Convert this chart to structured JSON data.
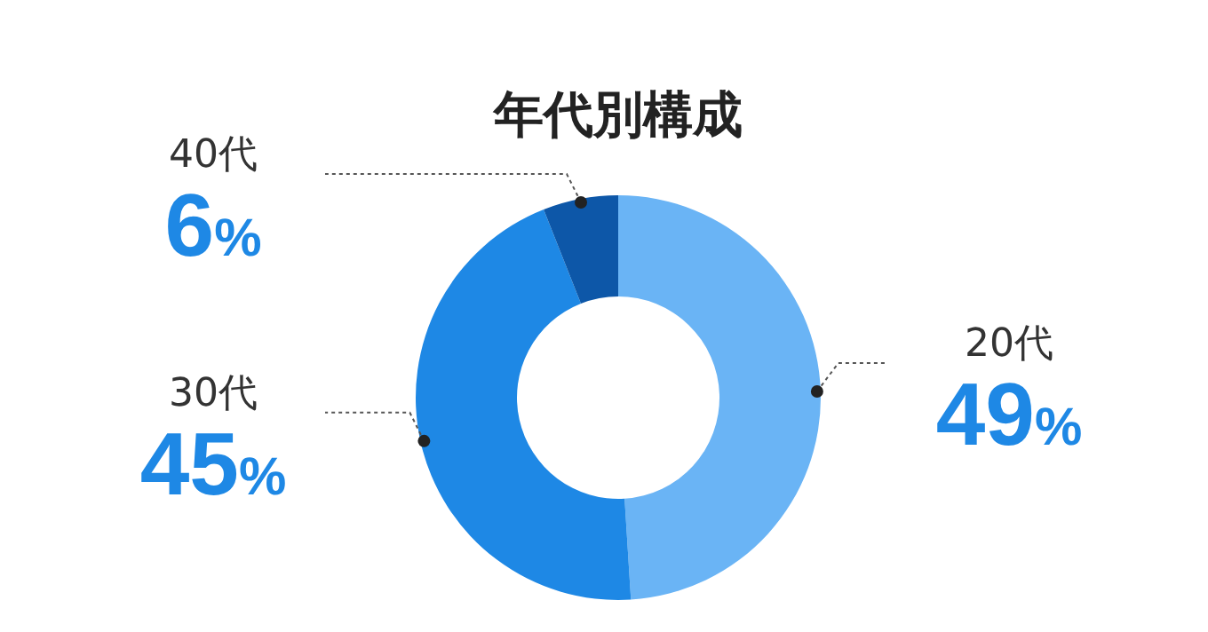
{
  "chart_data": {
    "type": "donut",
    "title": "年代別構成",
    "categories": [
      "20代",
      "30代",
      "40代"
    ],
    "values": [
      49,
      45,
      6
    ],
    "colors": [
      "#6ab4f5",
      "#1e88e5",
      "#0d57a8"
    ],
    "value_labels": [
      "49%",
      "45%",
      "6%"
    ]
  }
}
